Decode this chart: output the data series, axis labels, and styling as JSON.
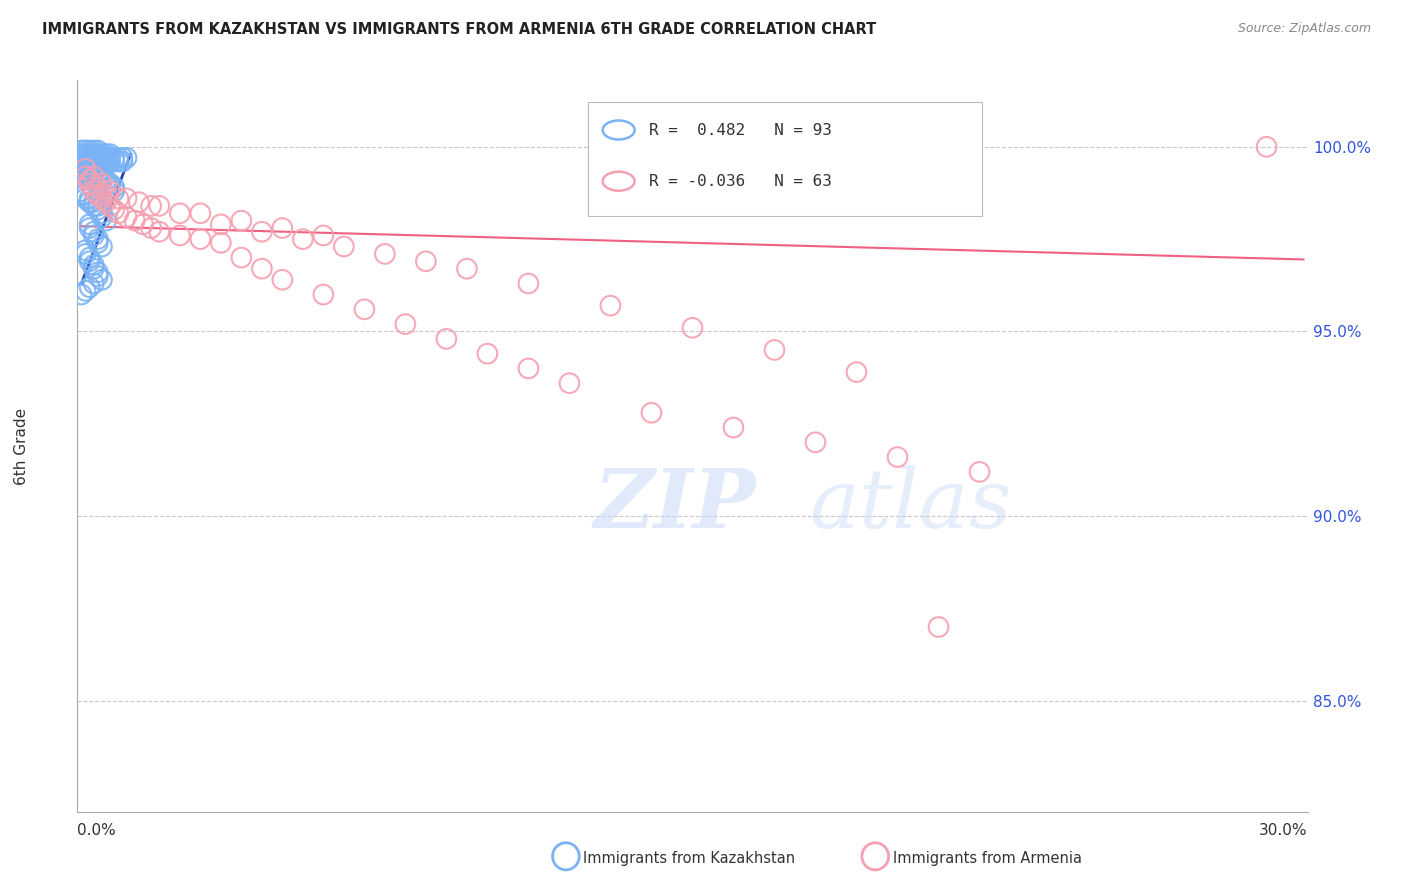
{
  "title": "IMMIGRANTS FROM KAZAKHSTAN VS IMMIGRANTS FROM ARMENIA 6TH GRADE CORRELATION CHART",
  "source": "Source: ZipAtlas.com",
  "ylabel": "6th Grade",
  "ytick_values": [
    1.0,
    0.95,
    0.9,
    0.85
  ],
  "ytick_labels": [
    "100.0%",
    "95.0%",
    "90.0%",
    "85.0%"
  ],
  "xmin": 0.0,
  "xmax": 0.3,
  "ymin": 0.82,
  "ymax": 1.018,
  "legend_kaz_r": "0.482",
  "legend_kaz_n": "93",
  "legend_arm_r": "-0.036",
  "legend_arm_n": "63",
  "legend_label_kaz": "Immigrants from Kazakhstan",
  "legend_label_arm": "Immigrants from Armenia",
  "kaz_color": "#7ab3f5",
  "arm_color": "#f5a0b0",
  "kaz_line_color": "#2244bb",
  "arm_line_color": "#f06080",
  "background_color": "#ffffff",
  "grid_color": "#c8c8c8",
  "right_axis_color": "#3355dd",
  "title_color": "#222222",
  "watermark_zip": "ZIP",
  "watermark_atlas": "atlas",
  "kaz_x": [
    0.001,
    0.001,
    0.001,
    0.001,
    0.002,
    0.002,
    0.002,
    0.002,
    0.002,
    0.003,
    0.003,
    0.003,
    0.003,
    0.003,
    0.004,
    0.004,
    0.004,
    0.004,
    0.005,
    0.005,
    0.005,
    0.005,
    0.006,
    0.006,
    0.006,
    0.007,
    0.007,
    0.007,
    0.008,
    0.008,
    0.008,
    0.009,
    0.009,
    0.01,
    0.01,
    0.011,
    0.011,
    0.012,
    0.001,
    0.001,
    0.002,
    0.002,
    0.002,
    0.003,
    0.003,
    0.003,
    0.004,
    0.004,
    0.004,
    0.005,
    0.005,
    0.005,
    0.006,
    0.006,
    0.007,
    0.007,
    0.008,
    0.008,
    0.009,
    0.009,
    0.001,
    0.001,
    0.002,
    0.002,
    0.003,
    0.003,
    0.004,
    0.004,
    0.005,
    0.005,
    0.006,
    0.006,
    0.007,
    0.003,
    0.003,
    0.004,
    0.004,
    0.005,
    0.005,
    0.006,
    0.002,
    0.002,
    0.003,
    0.003,
    0.004,
    0.004,
    0.005,
    0.005,
    0.006,
    0.004,
    0.003,
    0.002,
    0.001
  ],
  "kaz_y": [
    0.999,
    0.998,
    0.997,
    0.996,
    0.999,
    0.998,
    0.997,
    0.996,
    0.995,
    0.999,
    0.998,
    0.997,
    0.996,
    0.995,
    0.999,
    0.998,
    0.997,
    0.996,
    0.999,
    0.998,
    0.997,
    0.996,
    0.998,
    0.997,
    0.996,
    0.998,
    0.997,
    0.996,
    0.998,
    0.997,
    0.996,
    0.997,
    0.996,
    0.997,
    0.996,
    0.997,
    0.996,
    0.997,
    0.994,
    0.993,
    0.994,
    0.993,
    0.992,
    0.994,
    0.993,
    0.992,
    0.994,
    0.993,
    0.992,
    0.993,
    0.992,
    0.991,
    0.992,
    0.991,
    0.991,
    0.99,
    0.99,
    0.989,
    0.989,
    0.988,
    0.988,
    0.987,
    0.987,
    0.986,
    0.986,
    0.985,
    0.985,
    0.984,
    0.984,
    0.983,
    0.982,
    0.981,
    0.98,
    0.979,
    0.978,
    0.977,
    0.976,
    0.975,
    0.974,
    0.973,
    0.972,
    0.971,
    0.97,
    0.969,
    0.968,
    0.967,
    0.966,
    0.965,
    0.964,
    0.963,
    0.962,
    0.961,
    0.96
  ],
  "arm_x": [
    0.002,
    0.003,
    0.004,
    0.005,
    0.006,
    0.007,
    0.008,
    0.009,
    0.01,
    0.012,
    0.014,
    0.016,
    0.018,
    0.02,
    0.025,
    0.03,
    0.035,
    0.04,
    0.045,
    0.05,
    0.06,
    0.07,
    0.08,
    0.09,
    0.1,
    0.11,
    0.12,
    0.14,
    0.16,
    0.18,
    0.2,
    0.22,
    0.003,
    0.005,
    0.007,
    0.01,
    0.015,
    0.02,
    0.03,
    0.04,
    0.05,
    0.06,
    0.002,
    0.004,
    0.006,
    0.008,
    0.012,
    0.018,
    0.025,
    0.035,
    0.045,
    0.055,
    0.065,
    0.075,
    0.085,
    0.095,
    0.11,
    0.13,
    0.15,
    0.17,
    0.19,
    0.21,
    0.29
  ],
  "arm_y": [
    0.992,
    0.99,
    0.988,
    0.987,
    0.986,
    0.985,
    0.984,
    0.983,
    0.982,
    0.981,
    0.98,
    0.979,
    0.978,
    0.977,
    0.976,
    0.975,
    0.974,
    0.97,
    0.967,
    0.964,
    0.96,
    0.956,
    0.952,
    0.948,
    0.944,
    0.94,
    0.936,
    0.928,
    0.924,
    0.92,
    0.916,
    0.912,
    0.991,
    0.989,
    0.987,
    0.986,
    0.985,
    0.984,
    0.982,
    0.98,
    0.978,
    0.976,
    0.994,
    0.992,
    0.99,
    0.988,
    0.986,
    0.984,
    0.982,
    0.979,
    0.977,
    0.975,
    0.973,
    0.971,
    0.969,
    0.967,
    0.963,
    0.957,
    0.951,
    0.945,
    0.939,
    0.87,
    1.0
  ],
  "kaz_line_x": [
    0.001,
    0.013
  ],
  "kaz_line_y": [
    0.963,
    0.998
  ],
  "arm_line_x": [
    0.001,
    0.299
  ],
  "arm_line_y": [
    0.9785,
    0.9695
  ]
}
